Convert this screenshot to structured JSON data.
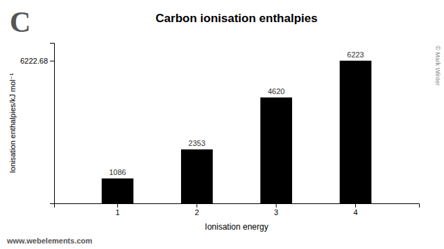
{
  "chart_data": {
    "type": "bar",
    "title": "Carbon ionisation enthalpies",
    "x_label": "Ionisation energy",
    "y_label": "Ionisation enthalpies/kJ mol⁻¹",
    "categories": [
      "1",
      "2",
      "3",
      "4"
    ],
    "values": [
      1086,
      2353,
      4620,
      6223
    ],
    "color": "#000000",
    "ylim": [
      0,
      7000
    ],
    "yticks": [
      6222.68
    ],
    "data_labels": true,
    "annotations": [
      "C",
      "www.webelements.com",
      "© Mark Winter"
    ]
  }
}
